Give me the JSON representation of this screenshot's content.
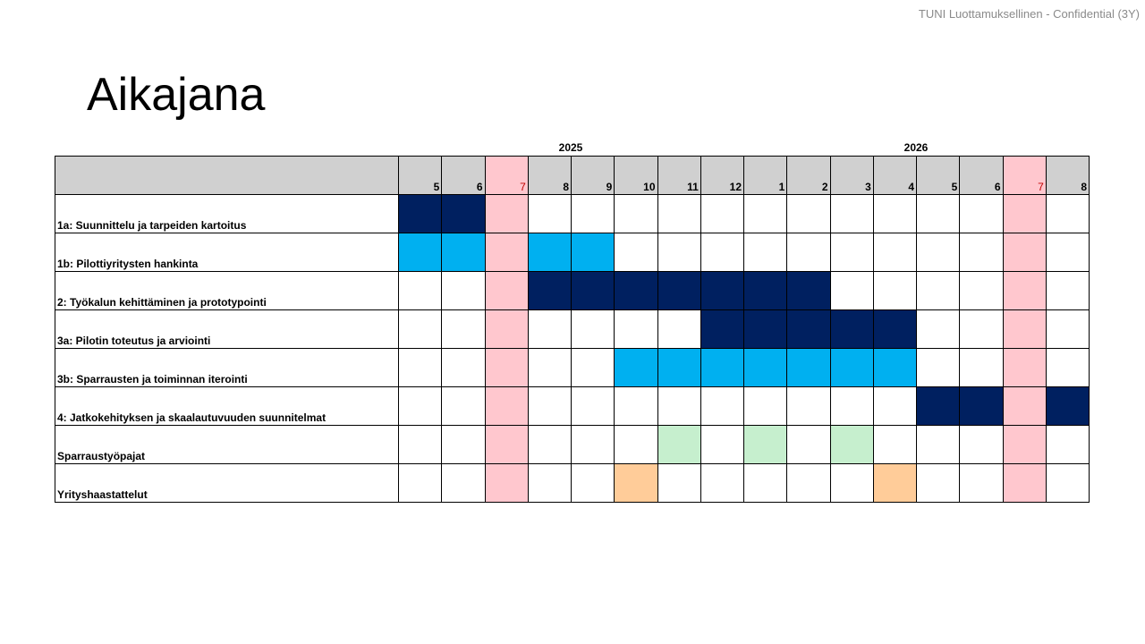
{
  "header": {
    "confidentiality": "TUNI Luottamuksellinen - Confidential (3Y)"
  },
  "page": {
    "title": "Aikajana"
  },
  "colors": {
    "header_bg": "#d0d0d0",
    "dark": "#002060",
    "light": "#00b0f0",
    "workshop": "#c6efce",
    "interview": "#ffcc99",
    "holiday": "#ffc7ce",
    "holiday_text": "#c00000"
  },
  "timeline": {
    "years": [
      {
        "label": "2025",
        "start": 0,
        "span": 8
      },
      {
        "label": "2026",
        "start": 8,
        "span": 8
      }
    ],
    "months": [
      "5",
      "6",
      "7",
      "8",
      "9",
      "10",
      "11",
      "12",
      "1",
      "2",
      "3",
      "4",
      "5",
      "6",
      "7",
      "8"
    ],
    "holiday_months": [
      2,
      14
    ],
    "rows": [
      {
        "label": "1a: Suunnittelu ja tarpeiden kartoitus",
        "cells": [
          "dark",
          "dark",
          "",
          "",
          "",
          "",
          "",
          "",
          "",
          "",
          "",
          "",
          "",
          "",
          "",
          ""
        ]
      },
      {
        "label": "1b: Pilottiyritysten hankinta",
        "cells": [
          "light",
          "light",
          "",
          "light",
          "light",
          "",
          "",
          "",
          "",
          "",
          "",
          "",
          "",
          "",
          "",
          ""
        ]
      },
      {
        "label": "2: Työkalun kehittäminen ja prototypointi",
        "cells": [
          "",
          "",
          "",
          "dark",
          "dark",
          "dark",
          "dark",
          "dark",
          "dark",
          "dark",
          "",
          "",
          "",
          "",
          "",
          ""
        ]
      },
      {
        "label": "3a: Pilotin toteutus ja arviointi",
        "cells": [
          "",
          "",
          "",
          "",
          "",
          "",
          "",
          "dark",
          "dark",
          "dark",
          "dark",
          "dark",
          "",
          "",
          "",
          ""
        ]
      },
      {
        "label": "3b: Sparrausten ja toiminnan iterointi",
        "cells": [
          "",
          "",
          "",
          "",
          "",
          "light",
          "light",
          "light",
          "light",
          "light",
          "light",
          "light",
          "",
          "",
          "",
          ""
        ]
      },
      {
        "label": "4: Jatkokehityksen ja skaalautuvuuden suunnitelmat",
        "cells": [
          "",
          "",
          "",
          "",
          "",
          "",
          "",
          "",
          "",
          "",
          "",
          "",
          "dark",
          "dark",
          "",
          "dark"
        ]
      },
      {
        "label": "Sparraustyöpajat",
        "cells": [
          "",
          "",
          "",
          "",
          "",
          "",
          "workshop",
          "",
          "workshop",
          "",
          "workshop",
          "",
          "",
          "",
          "",
          ""
        ]
      },
      {
        "label": "Yrityshaastattelut",
        "cells": [
          "",
          "",
          "",
          "",
          "",
          "interview",
          "",
          "",
          "",
          "",
          "",
          "interview",
          "",
          "",
          "",
          ""
        ]
      }
    ]
  }
}
